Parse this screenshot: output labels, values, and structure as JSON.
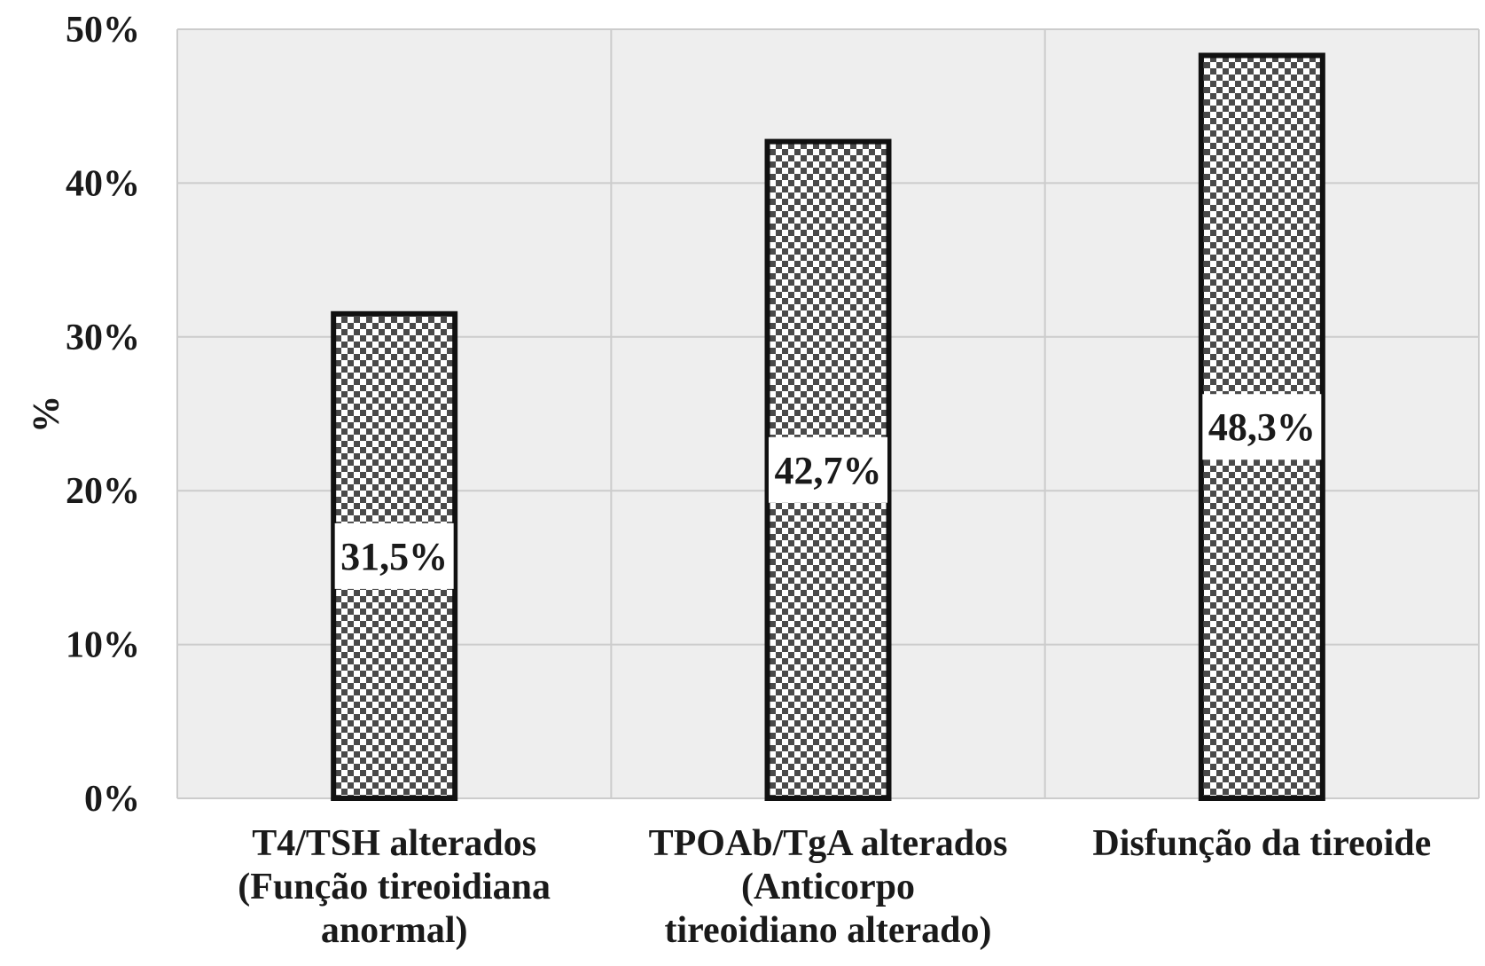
{
  "chart_data": {
    "type": "bar",
    "title": "",
    "xlabel": "",
    "ylabel": "%",
    "ylim": [
      0,
      50
    ],
    "ytick_values": [
      0,
      10,
      20,
      30,
      40,
      50
    ],
    "ytick_labels": [
      "0%",
      "10%",
      "20%",
      "30%",
      "40%",
      "50%"
    ],
    "categories": [
      [
        "T4/TSH alterados",
        "(Função tireoidiana",
        "anormal)"
      ],
      [
        "TPOAb/TgA alterados",
        "(Anticorpo",
        "tireoidiano alterado)"
      ],
      [
        "Disfunção da tireoide"
      ]
    ],
    "values": [
      31.5,
      42.7,
      48.3
    ],
    "data_labels": [
      "31,5%",
      "42,7%",
      "48,3%"
    ],
    "grid": true,
    "legend": "none",
    "colors": {
      "plot_background": "#eeeeee",
      "grid": "#cccccc",
      "bar_dark": "#4a4a4a",
      "bar_light": "#ffffff",
      "bar_border": "#111111",
      "label_box": "#ffffff"
    }
  }
}
